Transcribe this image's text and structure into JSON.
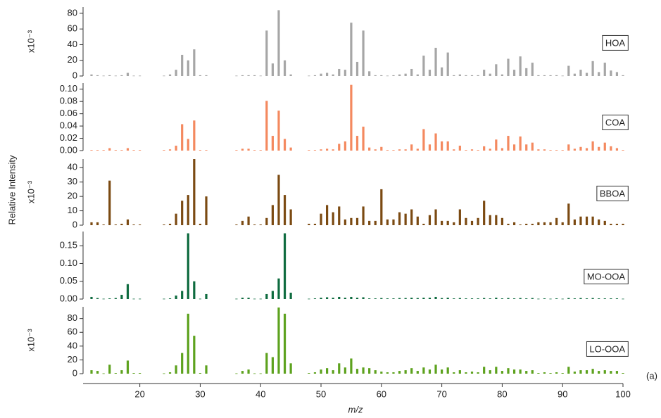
{
  "chart_data": {
    "type": "bar",
    "xlabel": "m/z",
    "ylabel": "Relative Intensity",
    "annotation": "(a)",
    "xlim": [
      11.5,
      100
    ],
    "xticks": [
      20,
      30,
      40,
      50,
      60,
      70,
      80,
      90,
      100
    ],
    "x": [
      12,
      13,
      14,
      15,
      16,
      17,
      18,
      19,
      20,
      24,
      25,
      26,
      27,
      28,
      29,
      30,
      31,
      36,
      37,
      38,
      39,
      40,
      41,
      42,
      43,
      44,
      45,
      48,
      49,
      50,
      51,
      52,
      53,
      54,
      55,
      56,
      57,
      58,
      59,
      60,
      61,
      62,
      63,
      64,
      65,
      66,
      67,
      68,
      69,
      70,
      71,
      72,
      73,
      74,
      75,
      76,
      77,
      78,
      79,
      80,
      81,
      82,
      83,
      84,
      85,
      86,
      87,
      88,
      89,
      90,
      91,
      92,
      93,
      94,
      95,
      96,
      97,
      98,
      99,
      100
    ],
    "series": [
      {
        "name": "HOA",
        "color": "#a6a6a6",
        "unit_label": "x10⁻³",
        "ylim": [
          0,
          88
        ],
        "yticks": [
          0,
          20,
          40,
          60,
          80
        ],
        "values": [
          2,
          1,
          0.5,
          1,
          0.5,
          1,
          4,
          0.5,
          0.5,
          0.5,
          2,
          8,
          27,
          20,
          34,
          1,
          1,
          0.5,
          1,
          1,
          1,
          0.5,
          58,
          16,
          84,
          20,
          2,
          0.5,
          1,
          3,
          4,
          2,
          9,
          8,
          68,
          18,
          58,
          6,
          1,
          1,
          0.5,
          1,
          2,
          3,
          9,
          2,
          26,
          8,
          36,
          11,
          30,
          1,
          2,
          1,
          1,
          1,
          8,
          3,
          15,
          2,
          22,
          8,
          25,
          10,
          17,
          1,
          1,
          1,
          1,
          0.5,
          13,
          3,
          8,
          4,
          19,
          5,
          17,
          7,
          5,
          1
        ]
      },
      {
        "name": "COA",
        "color": "#f4895f",
        "ylim": [
          0,
          0.11
        ],
        "yticks": [
          {
            "value": 0,
            "label": "0.00"
          },
          {
            "value": 0.02,
            "label": "0.02"
          },
          {
            "value": 0.04,
            "label": "0.04"
          },
          {
            "value": 0.06,
            "label": "0.06"
          },
          {
            "value": 0.08,
            "label": "0.08"
          },
          {
            "value": 0.1,
            "label": "0.10"
          }
        ],
        "values": [
          0.001,
          0.001,
          0.001,
          0.004,
          0.001,
          0.001,
          0.004,
          0.001,
          0.001,
          0.001,
          0.002,
          0.008,
          0.043,
          0.019,
          0.049,
          0.001,
          0.001,
          0.001,
          0.003,
          0.003,
          0.001,
          0.001,
          0.081,
          0.024,
          0.065,
          0.019,
          0.005,
          0.001,
          0.001,
          0.002,
          0.003,
          0.002,
          0.011,
          0.015,
          0.107,
          0.024,
          0.039,
          0.005,
          0.002,
          0.006,
          0.001,
          0.001,
          0.002,
          0.002,
          0.01,
          0.003,
          0.035,
          0.01,
          0.028,
          0.015,
          0.015,
          0.002,
          0.008,
          0.001,
          0.002,
          0.001,
          0.007,
          0.003,
          0.018,
          0.004,
          0.024,
          0.01,
          0.023,
          0.01,
          0.013,
          0.002,
          0.002,
          0.001,
          0.001,
          0.001,
          0.01,
          0.003,
          0.006,
          0.004,
          0.015,
          0.006,
          0.013,
          0.007,
          0.004,
          0.001
        ]
      },
      {
        "name": "BBOA",
        "color": "#7b4a12",
        "unit_label": "x10⁻³",
        "ylim": [
          0,
          46
        ],
        "yticks": [
          0,
          10,
          20,
          30,
          40
        ],
        "values": [
          2,
          2,
          0.5,
          31,
          0.5,
          1,
          4,
          0.5,
          0.5,
          0.5,
          1,
          8,
          17,
          21,
          46,
          1,
          20,
          0.5,
          3,
          6,
          0.5,
          0.5,
          5,
          14,
          35,
          21,
          11,
          1,
          1,
          8,
          14,
          9,
          13,
          4,
          5,
          5,
          13,
          3,
          3,
          25,
          4,
          4,
          9,
          8,
          11,
          6,
          1,
          7,
          11,
          3,
          3,
          2,
          11,
          5,
          3,
          5,
          17,
          7,
          7,
          5,
          1,
          2,
          0.5,
          1,
          1,
          2,
          2,
          2,
          5,
          2,
          15,
          4,
          6,
          6,
          6,
          4,
          3,
          1,
          1,
          1
        ]
      },
      {
        "name": "MO-OOA",
        "color": "#0e6b3f",
        "ylim": [
          0,
          0.19
        ],
        "yticks": [
          {
            "value": 0,
            "label": "0.00"
          },
          {
            "value": 0.05,
            "label": "0.05"
          },
          {
            "value": 0.1,
            "label": "0.10"
          },
          {
            "value": 0.15,
            "label": "0.15"
          }
        ],
        "values": [
          0.006,
          0.003,
          0.001,
          0.002,
          0.003,
          0.012,
          0.042,
          0.001,
          0.001,
          0.001,
          0.002,
          0.01,
          0.023,
          0.185,
          0.05,
          0.001,
          0.014,
          0.001,
          0.004,
          0.004,
          0.001,
          0.001,
          0.014,
          0.023,
          0.058,
          0.185,
          0.018,
          0.001,
          0.002,
          0.004,
          0.005,
          0.004,
          0.006,
          0.004,
          0.006,
          0.004,
          0.005,
          0.002,
          0.002,
          0.003,
          0.002,
          0.002,
          0.003,
          0.003,
          0.004,
          0.003,
          0.004,
          0.004,
          0.006,
          0.003,
          0.004,
          0.002,
          0.003,
          0.002,
          0.002,
          0.002,
          0.003,
          0.002,
          0.004,
          0.002,
          0.003,
          0.002,
          0.003,
          0.002,
          0.003,
          0.001,
          0.002,
          0.001,
          0.002,
          0.001,
          0.003,
          0.002,
          0.003,
          0.002,
          0.003,
          0.002,
          0.002,
          0.002,
          0.002,
          0.001
        ]
      },
      {
        "name": "LO-OOA",
        "color": "#5da21e",
        "unit_label": "x10⁻³",
        "ylim": [
          0,
          97
        ],
        "yticks": [
          0,
          20,
          40,
          60,
          80
        ],
        "values": [
          5,
          4,
          0.5,
          13,
          1,
          5,
          19,
          1,
          1,
          0.5,
          2,
          12,
          30,
          87,
          55,
          1,
          12,
          0.5,
          4,
          6,
          0.5,
          0.5,
          30,
          24,
          96,
          87,
          15,
          1,
          2,
          6,
          8,
          5,
          15,
          9,
          22,
          7,
          9,
          8,
          5,
          3,
          2,
          2,
          4,
          5,
          8,
          4,
          9,
          6,
          13,
          6,
          9,
          2,
          5,
          2,
          3,
          2,
          10,
          5,
          10,
          4,
          8,
          6,
          6,
          4,
          5,
          1,
          2,
          1,
          2,
          1,
          10,
          3,
          5,
          5,
          7,
          4,
          5,
          4,
          4,
          1
        ]
      }
    ]
  }
}
